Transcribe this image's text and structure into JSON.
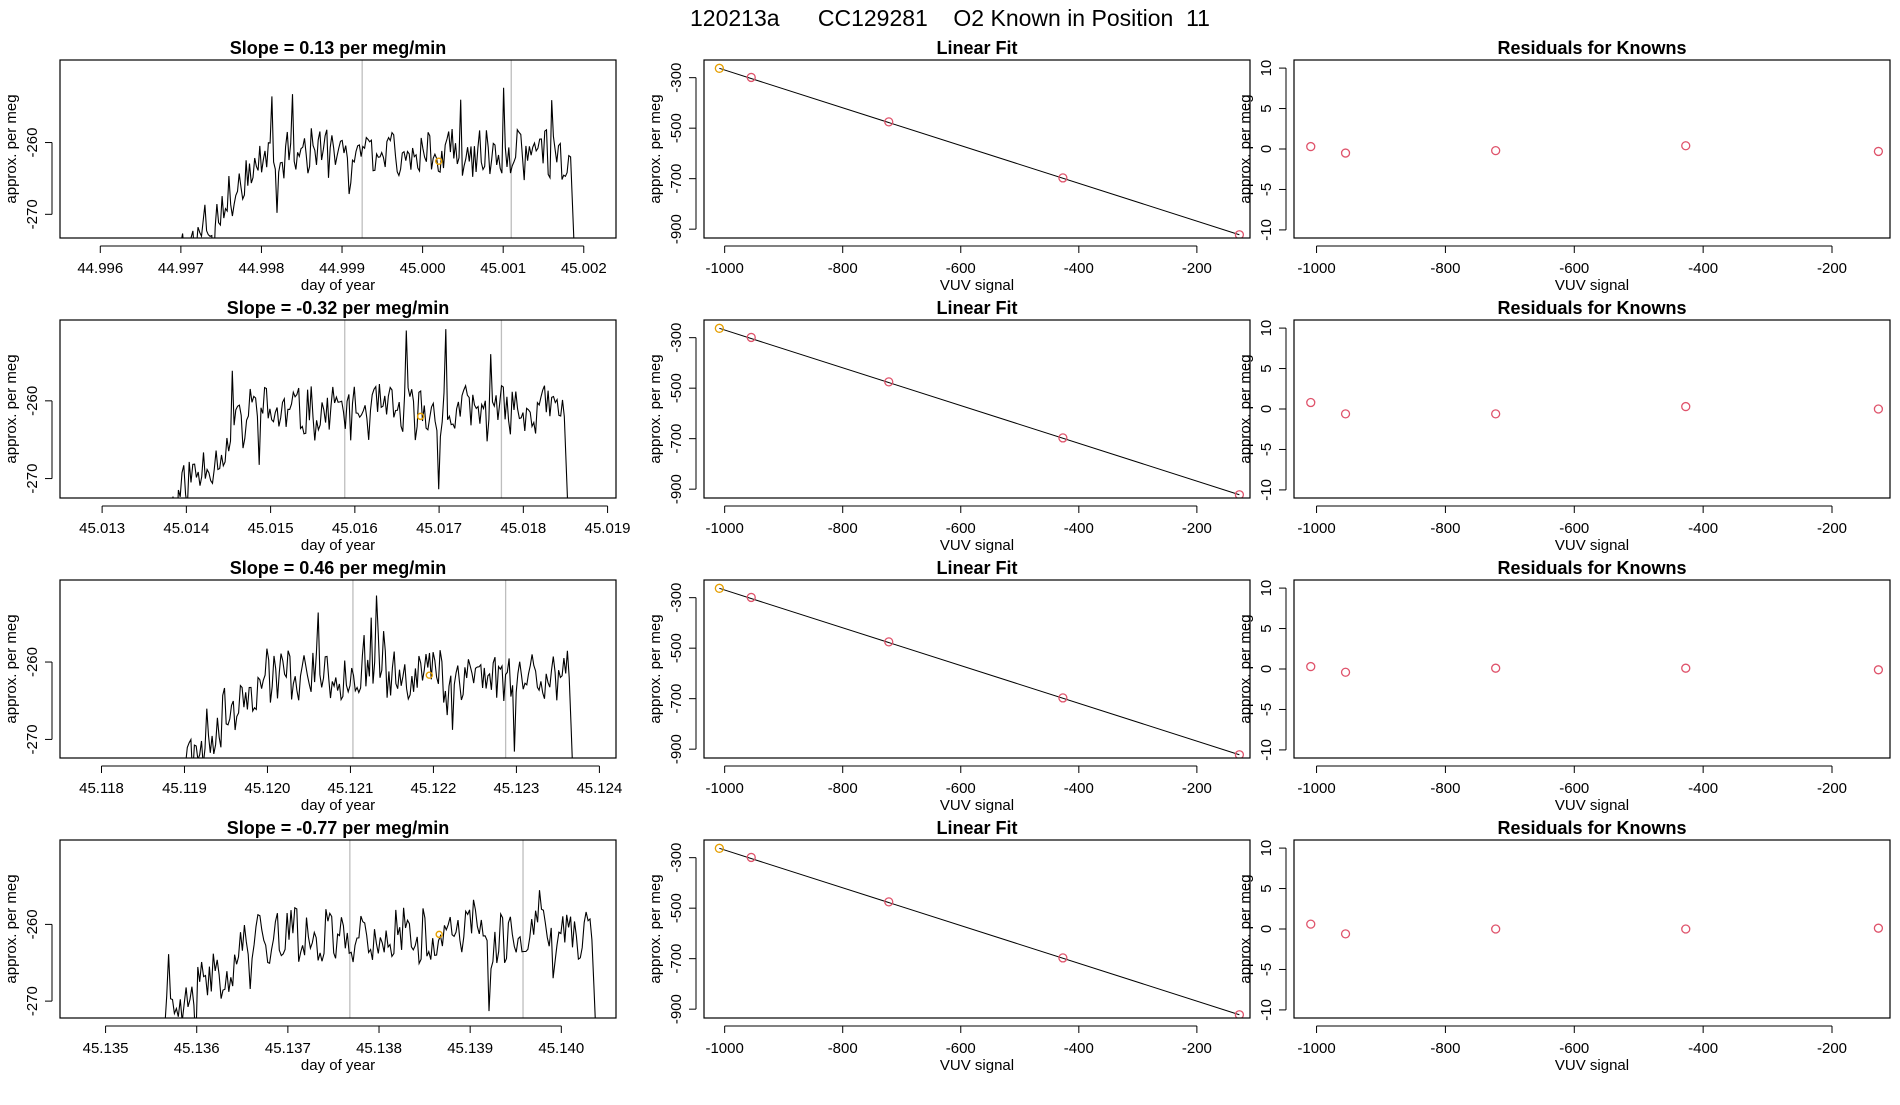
{
  "page_title": "120213a      CC129281    O2 Known in Position  11",
  "colors": {
    "series": "#000000",
    "marker_orange": "#e69f00",
    "marker_red": "#df536b",
    "vline": "#bebebe",
    "axis": "#000000"
  },
  "chart_data": [
    {
      "type": "line",
      "row": 0,
      "col": 0,
      "title": "Slope =  0.13  per meg/min",
      "xlabel": "day of year",
      "ylabel": "approx. per meg",
      "xlim": [
        44.9955,
        45.0024
      ],
      "ylim": [
        -273.3,
        -248.5
      ],
      "xticks": [
        44.996,
        44.997,
        44.998,
        44.999,
        45.0,
        45.001,
        45.002
      ],
      "xtick_labels": [
        "44.996",
        "44.997",
        "44.998",
        "44.999",
        "45.000",
        "45.001",
        "45.002"
      ],
      "yticks": [
        -270,
        -260
      ],
      "ytick_labels": [
        "-270",
        "-260"
      ],
      "vlines": [
        44.99925,
        45.0011
      ],
      "x_range": [
        44.997,
        45.0019
      ],
      "series_seed": 3,
      "highlight": {
        "x": 45.0002,
        "y": -262.6
      }
    },
    {
      "type": "scatter",
      "row": 0,
      "col": 1,
      "title": "Linear Fit",
      "xlabel": "VUV signal",
      "ylabel": "approx. per meg",
      "xlim": [
        -1035,
        -110
      ],
      "ylim": [
        -935,
        -230
      ],
      "xticks": [
        -1000,
        -800,
        -600,
        -400,
        -200
      ],
      "xtick_labels": [
        "-1000",
        "-800",
        "-600",
        "-400",
        "-200"
      ],
      "yticks": [
        -300,
        -500,
        -700,
        -900
      ],
      "ytick_labels": [
        "-300",
        "-500",
        "-700",
        "-900"
      ],
      "fit_line": [
        [
          -1009,
          -263
        ],
        [
          -128,
          -922
        ]
      ],
      "points": [
        {
          "x": -1009,
          "y": -263,
          "color": "orange"
        },
        {
          "x": -955,
          "y": -299,
          "color": "red"
        },
        {
          "x": -722,
          "y": -475,
          "color": "red"
        },
        {
          "x": -427,
          "y": -697,
          "color": "red"
        },
        {
          "x": -128,
          "y": -922,
          "color": "red"
        }
      ]
    },
    {
      "type": "scatter",
      "row": 0,
      "col": 2,
      "title": "Residuals for Knowns",
      "xlabel": "VUV signal",
      "ylabel": "approx. per meg",
      "xlim": [
        -1035,
        -110
      ],
      "ylim": [
        -11,
        11
      ],
      "xticks": [
        -1000,
        -800,
        -600,
        -400,
        -200
      ],
      "xtick_labels": [
        "-1000",
        "-800",
        "-600",
        "-400",
        "-200"
      ],
      "yticks": [
        -10,
        -5,
        0,
        5,
        10
      ],
      "ytick_labels": [
        "-10",
        "-5",
        "0",
        "5",
        "10"
      ],
      "points": [
        {
          "x": -1009,
          "y": 0.3,
          "color": "red"
        },
        {
          "x": -955,
          "y": -0.5,
          "color": "red"
        },
        {
          "x": -722,
          "y": -0.2,
          "color": "red"
        },
        {
          "x": -427,
          "y": 0.4,
          "color": "red"
        },
        {
          "x": -128,
          "y": -0.3,
          "color": "red"
        }
      ]
    },
    {
      "type": "line",
      "row": 1,
      "col": 0,
      "title": "Slope =  -0.32  per meg/min",
      "xlabel": "day of year",
      "ylabel": "approx. per meg",
      "xlim": [
        45.0125,
        45.0191
      ],
      "ylim": [
        -272.5,
        -249.6
      ],
      "xticks": [
        45.013,
        45.014,
        45.015,
        45.016,
        45.017,
        45.018,
        45.019
      ],
      "xtick_labels": [
        "45.013",
        "45.014",
        "45.015",
        "45.016",
        "45.017",
        "45.018",
        "45.019"
      ],
      "yticks": [
        -270,
        -260
      ],
      "ytick_labels": [
        "-270",
        "-260"
      ],
      "vlines": [
        45.01588,
        45.01774
      ],
      "x_range": [
        45.01365,
        45.01855
      ],
      "series_seed": 11,
      "highlight": {
        "x": 45.01678,
        "y": -262.0
      }
    },
    {
      "type": "scatter",
      "row": 1,
      "col": 1,
      "title": "Linear Fit",
      "xlabel": "VUV signal",
      "ylabel": "approx. per meg",
      "xlim": [
        -1035,
        -110
      ],
      "ylim": [
        -935,
        -230
      ],
      "xticks": [
        -1000,
        -800,
        -600,
        -400,
        -200
      ],
      "xtick_labels": [
        "-1000",
        "-800",
        "-600",
        "-400",
        "-200"
      ],
      "yticks": [
        -300,
        -500,
        -700,
        -900
      ],
      "ytick_labels": [
        "-300",
        "-500",
        "-700",
        "-900"
      ],
      "fit_line": [
        [
          -1009,
          -263
        ],
        [
          -128,
          -922
        ]
      ],
      "points": [
        {
          "x": -1009,
          "y": -263,
          "color": "orange"
        },
        {
          "x": -955,
          "y": -299,
          "color": "red"
        },
        {
          "x": -722,
          "y": -475,
          "color": "red"
        },
        {
          "x": -427,
          "y": -697,
          "color": "red"
        },
        {
          "x": -128,
          "y": -922,
          "color": "red"
        }
      ]
    },
    {
      "type": "scatter",
      "row": 1,
      "col": 2,
      "title": "Residuals for Knowns",
      "xlabel": "VUV signal",
      "ylabel": "approx. per meg",
      "xlim": [
        -1035,
        -110
      ],
      "ylim": [
        -11,
        11
      ],
      "xticks": [
        -1000,
        -800,
        -600,
        -400,
        -200
      ],
      "xtick_labels": [
        "-1000",
        "-800",
        "-600",
        "-400",
        "-200"
      ],
      "yticks": [
        -10,
        -5,
        0,
        5,
        10
      ],
      "ytick_labels": [
        "-10",
        "-5",
        "0",
        "5",
        "10"
      ],
      "points": [
        {
          "x": -1009,
          "y": 0.8,
          "color": "red"
        },
        {
          "x": -955,
          "y": -0.6,
          "color": "red"
        },
        {
          "x": -722,
          "y": -0.6,
          "color": "red"
        },
        {
          "x": -427,
          "y": 0.3,
          "color": "red"
        },
        {
          "x": -128,
          "y": 0.0,
          "color": "red"
        }
      ]
    },
    {
      "type": "line",
      "row": 2,
      "col": 0,
      "title": "Slope =  0.46  per meg/min",
      "xlabel": "day of year",
      "ylabel": "approx. per meg",
      "xlim": [
        45.1175,
        45.1242
      ],
      "ylim": [
        -272.4,
        -249.4
      ],
      "xticks": [
        45.118,
        45.119,
        45.12,
        45.121,
        45.122,
        45.123,
        45.124
      ],
      "xtick_labels": [
        "45.118",
        "45.119",
        "45.120",
        "45.121",
        "45.122",
        "45.123",
        "45.124"
      ],
      "yticks": [
        -270,
        -260
      ],
      "ytick_labels": [
        "-270",
        "-260"
      ],
      "vlines": [
        45.12103,
        45.12287
      ],
      "x_range": [
        45.1188,
        45.1237
      ],
      "series_seed": 23,
      "highlight": {
        "x": 45.12195,
        "y": -261.7
      }
    },
    {
      "type": "scatter",
      "row": 2,
      "col": 1,
      "title": "Linear Fit",
      "xlabel": "VUV signal",
      "ylabel": "approx. per meg",
      "xlim": [
        -1035,
        -110
      ],
      "ylim": [
        -935,
        -230
      ],
      "xticks": [
        -1000,
        -800,
        -600,
        -400,
        -200
      ],
      "xtick_labels": [
        "-1000",
        "-800",
        "-600",
        "-400",
        "-200"
      ],
      "yticks": [
        -300,
        -500,
        -700,
        -900
      ],
      "ytick_labels": [
        "-300",
        "-500",
        "-700",
        "-900"
      ],
      "fit_line": [
        [
          -1009,
          -263
        ],
        [
          -128,
          -922
        ]
      ],
      "points": [
        {
          "x": -1009,
          "y": -263,
          "color": "orange"
        },
        {
          "x": -955,
          "y": -299,
          "color": "red"
        },
        {
          "x": -722,
          "y": -475,
          "color": "red"
        },
        {
          "x": -427,
          "y": -697,
          "color": "red"
        },
        {
          "x": -128,
          "y": -922,
          "color": "red"
        }
      ]
    },
    {
      "type": "scatter",
      "row": 2,
      "col": 2,
      "title": "Residuals for Knowns",
      "xlabel": "VUV signal",
      "ylabel": "approx. per meg",
      "xlim": [
        -1035,
        -110
      ],
      "ylim": [
        -11,
        11
      ],
      "xticks": [
        -1000,
        -800,
        -600,
        -400,
        -200
      ],
      "xtick_labels": [
        "-1000",
        "-800",
        "-600",
        "-400",
        "-200"
      ],
      "yticks": [
        -10,
        -5,
        0,
        5,
        10
      ],
      "ytick_labels": [
        "-10",
        "-5",
        "0",
        "5",
        "10"
      ],
      "points": [
        {
          "x": -1009,
          "y": 0.3,
          "color": "red"
        },
        {
          "x": -955,
          "y": -0.4,
          "color": "red"
        },
        {
          "x": -722,
          "y": 0.1,
          "color": "red"
        },
        {
          "x": -427,
          "y": 0.1,
          "color": "red"
        },
        {
          "x": -128,
          "y": -0.1,
          "color": "red"
        }
      ]
    },
    {
      "type": "line",
      "row": 3,
      "col": 0,
      "title": "Slope =  -0.77  per meg/min",
      "xlabel": "day of year",
      "ylabel": "approx. per meg",
      "xlim": [
        45.1345,
        45.1406
      ],
      "ylim": [
        -272.2,
        -249.0
      ],
      "xticks": [
        45.135,
        45.136,
        45.137,
        45.138,
        45.139,
        45.14
      ],
      "xtick_labels": [
        "45.135",
        "45.136",
        "45.137",
        "45.138",
        "45.139",
        "45.140"
      ],
      "yticks": [
        -270,
        -260
      ],
      "ytick_labels": [
        "-270",
        "-260"
      ],
      "vlines": [
        45.13768,
        45.13958
      ],
      "x_range": [
        45.1355,
        45.1404
      ],
      "series_seed": 41,
      "highlight": {
        "x": 45.13866,
        "y": -261.3
      }
    },
    {
      "type": "scatter",
      "row": 3,
      "col": 1,
      "title": "Linear Fit",
      "xlabel": "VUV signal",
      "ylabel": "approx. per meg",
      "xlim": [
        -1035,
        -110
      ],
      "ylim": [
        -935,
        -230
      ],
      "xticks": [
        -1000,
        -800,
        -600,
        -400,
        -200
      ],
      "xtick_labels": [
        "-1000",
        "-800",
        "-600",
        "-400",
        "-200"
      ],
      "yticks": [
        -300,
        -500,
        -700,
        -900
      ],
      "ytick_labels": [
        "-300",
        "-500",
        "-700",
        "-900"
      ],
      "fit_line": [
        [
          -1009,
          -263
        ],
        [
          -128,
          -922
        ]
      ],
      "points": [
        {
          "x": -1009,
          "y": -263,
          "color": "orange"
        },
        {
          "x": -955,
          "y": -299,
          "color": "red"
        },
        {
          "x": -722,
          "y": -475,
          "color": "red"
        },
        {
          "x": -427,
          "y": -697,
          "color": "red"
        },
        {
          "x": -128,
          "y": -922,
          "color": "red"
        }
      ]
    },
    {
      "type": "scatter",
      "row": 3,
      "col": 2,
      "title": "Residuals for Knowns",
      "xlabel": "VUV signal",
      "ylabel": "approx. per meg",
      "xlim": [
        -1035,
        -110
      ],
      "ylim": [
        -11,
        11
      ],
      "xticks": [
        -1000,
        -800,
        -600,
        -400,
        -200
      ],
      "xtick_labels": [
        "-1000",
        "-800",
        "-600",
        "-400",
        "-200"
      ],
      "yticks": [
        -10,
        -5,
        0,
        5,
        10
      ],
      "ytick_labels": [
        "-10",
        "-5",
        "0",
        "5",
        "10"
      ],
      "points": [
        {
          "x": -1009,
          "y": 0.6,
          "color": "red"
        },
        {
          "x": -955,
          "y": -0.6,
          "color": "red"
        },
        {
          "x": -722,
          "y": 0.0,
          "color": "red"
        },
        {
          "x": -427,
          "y": 0.0,
          "color": "red"
        },
        {
          "x": -128,
          "y": 0.1,
          "color": "red"
        }
      ]
    }
  ]
}
